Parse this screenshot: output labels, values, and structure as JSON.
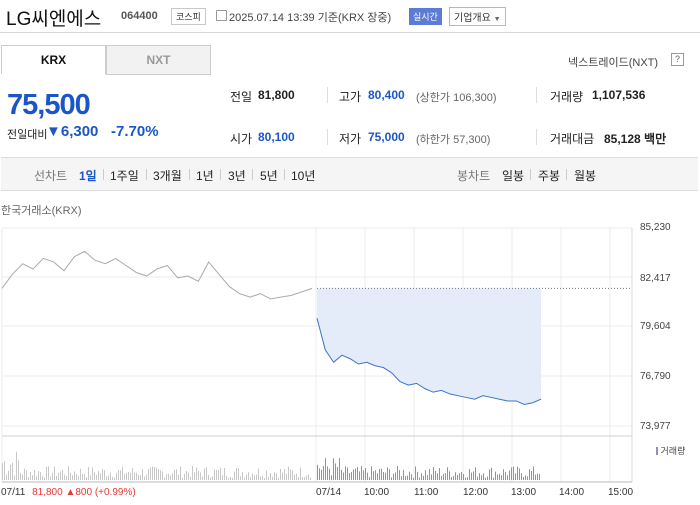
{
  "header": {
    "company_name": "LG씨엔에스",
    "stock_code": "064400",
    "market_badge": "코스피",
    "timestamp": "2025.07.14 13:39",
    "basis": "기준(KRX 장중)",
    "realtime_badge": "실시간",
    "overview_button": "기업개요",
    "icons": [
      "calendar-icon",
      "dropdown-arrow-icon"
    ]
  },
  "tabs": [
    "KRX",
    "NXT"
  ],
  "nxt_link": "넥스트레이드(NXT)",
  "help_label": "?",
  "price": {
    "current": "75,500",
    "change_label": "전일대비",
    "change_value": "▼6,300",
    "change_pct": "-7.70%",
    "color": "#1a56c8"
  },
  "quote": {
    "prev_close_label": "전일",
    "prev_close": "81,800",
    "high_label": "고가",
    "high": "80,400",
    "upper_limit": "(상한가 106,300)",
    "volume_label": "거래량",
    "volume": "1,107,536",
    "open_label": "시가",
    "open": "80,100",
    "low_label": "저가",
    "low": "75,000",
    "lower_limit": "(하한가 57,300)",
    "amount_label": "거래대금",
    "amount": "85,128 백만"
  },
  "chart_nav": {
    "line_label": "선차트",
    "line_periods": [
      "1일",
      "1주일",
      "3개월",
      "1년",
      "3년",
      "5년",
      "10년"
    ],
    "active_period": "1일",
    "candle_label": "봉차트",
    "candle_periods": [
      "일봉",
      "주봉",
      "월봉"
    ]
  },
  "chart": {
    "source_label": "한국거래소(KRX)",
    "volume_label": "거래량",
    "prev_day_date": "07/11",
    "prev_day_price": "81,800",
    "prev_day_change": "▲800 (+0.99%)"
  },
  "chart_data": {
    "type": "line",
    "ylim": [
      73977,
      85230
    ],
    "y_ticks": [
      "85,230",
      "82,417",
      "79,604",
      "76,790",
      "73,977"
    ],
    "x_ticks": [
      "07/11",
      "07/14",
      "10:00",
      "11:00",
      "12:00",
      "13:00",
      "14:00",
      "15:00"
    ],
    "reference_line": 81800,
    "series": [
      {
        "values_prev_day": [
          81800,
          82600,
          83200,
          82900,
          83500,
          83300,
          82800,
          83600,
          83900,
          83400,
          83200,
          83500,
          83100,
          82700,
          82500,
          82900,
          83100,
          82400,
          82500,
          82200,
          83300,
          82600,
          81900,
          81500,
          81300,
          81500,
          81200,
          81300,
          81400,
          81600,
          81800
        ],
        "values_today": [
          80100,
          78300,
          77600,
          78000,
          77800,
          77500,
          77600,
          77400,
          77300,
          77000,
          76500,
          76300,
          76400,
          76100,
          75900,
          76000,
          75800,
          75700,
          75600,
          75500,
          75700,
          75600,
          75500,
          75400,
          75400,
          75200,
          75300,
          75500
        ]
      }
    ],
    "colors": {
      "prev_day": "#aaaaaa",
      "today": "#3c74c4",
      "area": "#e4ebf9",
      "up": "#e53935",
      "down": "#1a56c8"
    }
  }
}
